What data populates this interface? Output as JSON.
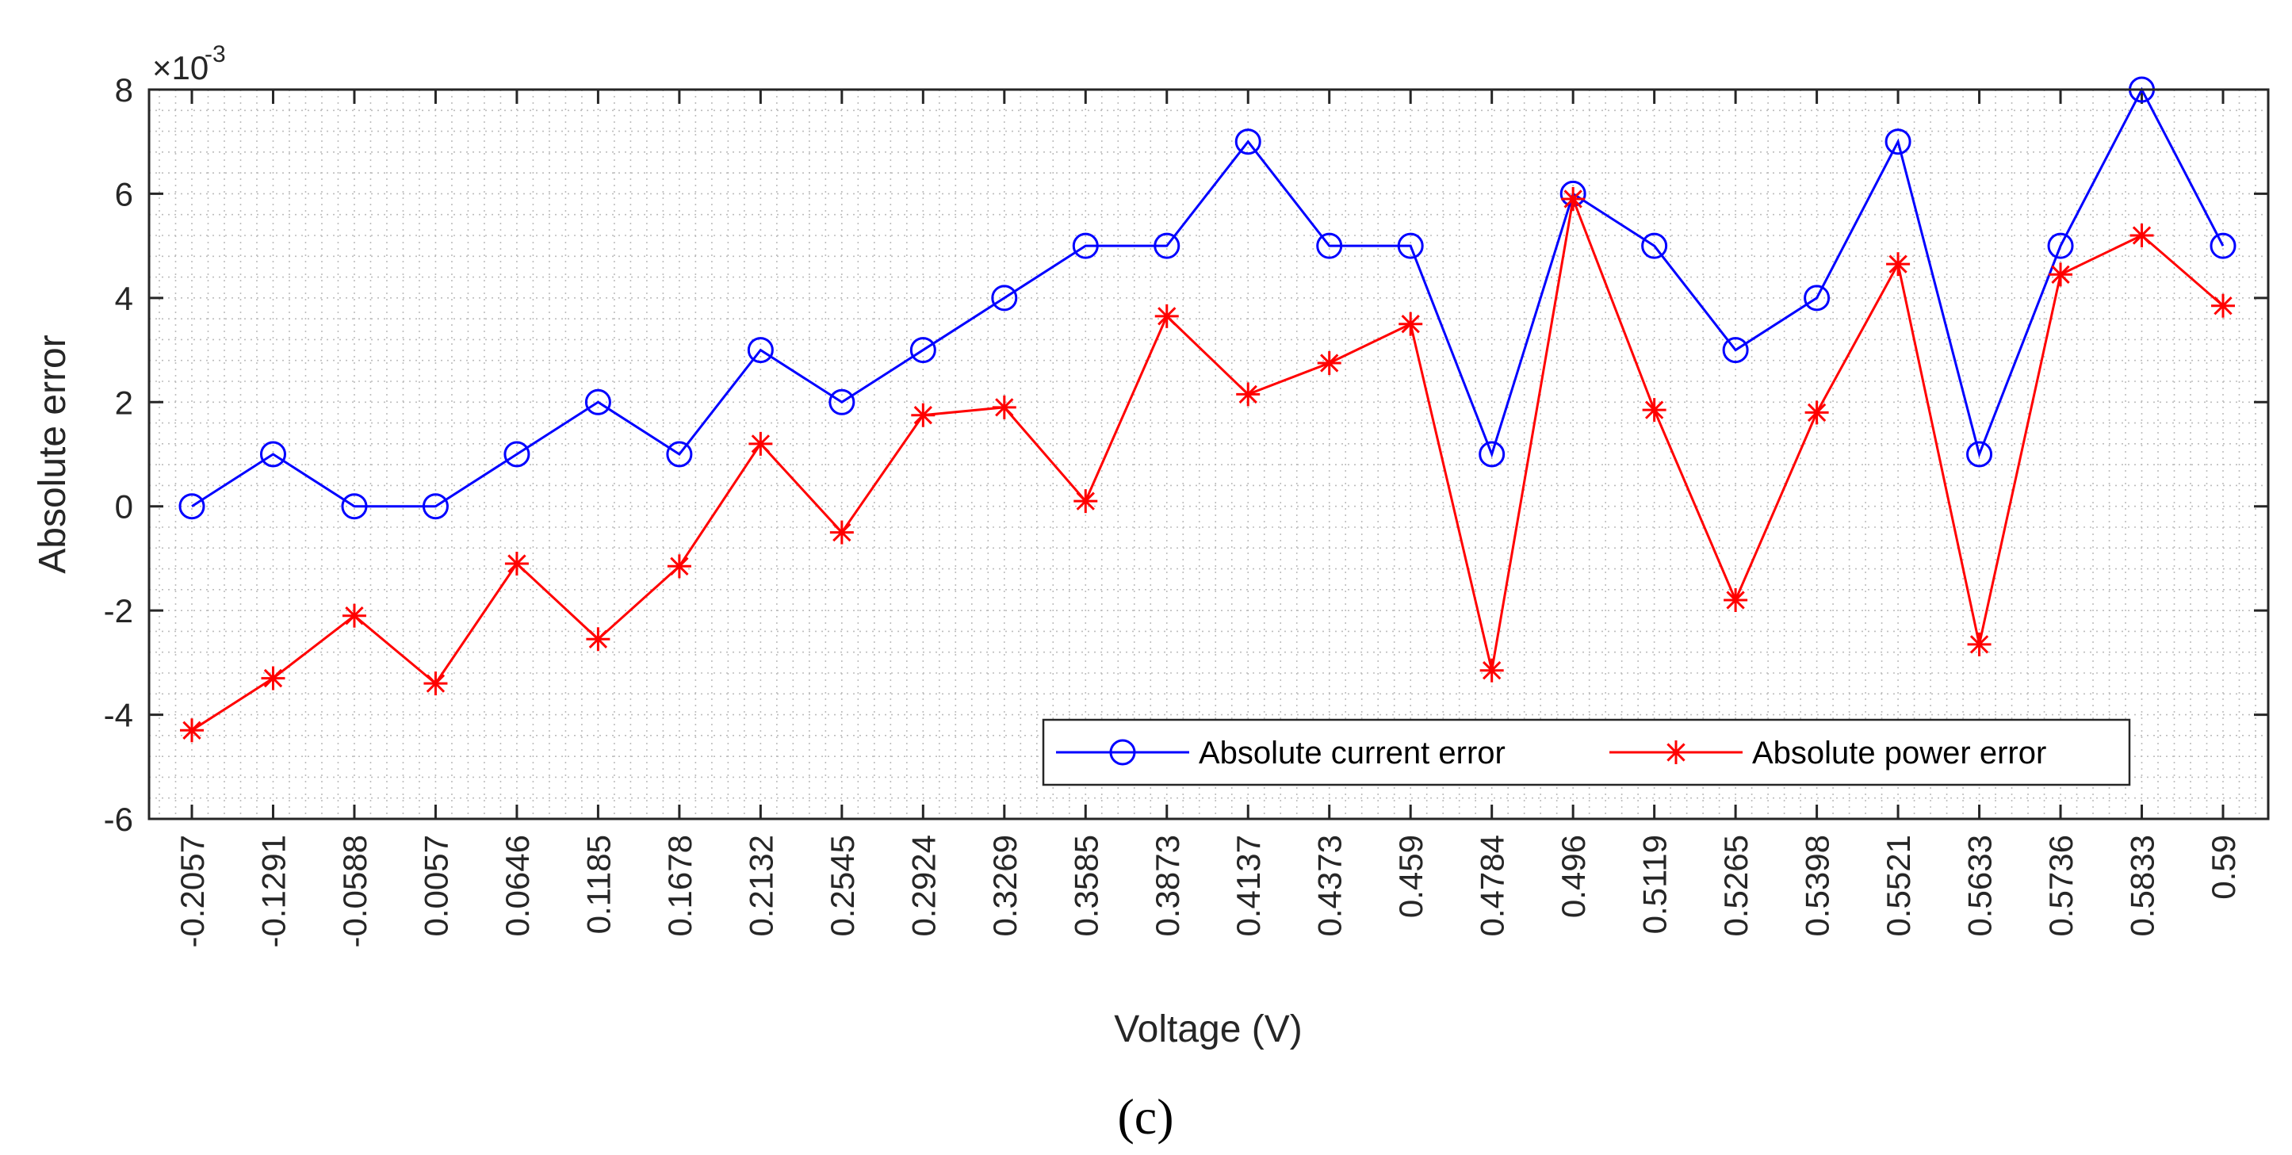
{
  "chart_data": {
    "type": "line",
    "xlabel": "Voltage (V)",
    "ylabel": "Absolute error",
    "y_exponent_label": "×10",
    "y_exponent_power": "-3",
    "ylim": [
      -6,
      8
    ],
    "yticks": [
      "-6",
      "-4",
      "-2",
      "0",
      "2",
      "4",
      "6",
      "8"
    ],
    "grid": "dotted minor grid",
    "legend_position": "bottom-right",
    "categories": [
      "-0.2057",
      "-0.1291",
      "-0.0588",
      "0.0057",
      "0.0646",
      "0.1185",
      "0.1678",
      "0.2132",
      "0.2545",
      "0.2924",
      "0.3269",
      "0.3585",
      "0.3873",
      "0.4137",
      "0.4373",
      "0.459",
      "0.4784",
      "0.496",
      "0.5119",
      "0.5265",
      "0.5398",
      "0.5521",
      "0.5633",
      "0.5736",
      "0.5833",
      "0.59"
    ],
    "series": [
      {
        "name": "Absolute current error",
        "color": "#0000ff",
        "marker": "circle",
        "values": [
          0,
          1,
          0,
          0,
          1,
          2,
          1,
          3,
          2,
          3,
          4,
          5,
          5,
          7,
          5,
          5,
          1,
          6,
          5,
          3,
          4,
          7,
          1,
          5,
          8,
          5
        ]
      },
      {
        "name": "Absolute power error",
        "color": "#ff0000",
        "marker": "asterisk",
        "values": [
          -4.3,
          -3.3,
          -2.1,
          -3.4,
          -1.1,
          -2.55,
          -1.15,
          1.2,
          -0.5,
          1.75,
          1.9,
          0.1,
          3.65,
          2.15,
          2.75,
          3.5,
          -3.15,
          5.9,
          1.85,
          -1.8,
          1.8,
          4.65,
          -2.65,
          4.45,
          5.2,
          3.85
        ]
      }
    ]
  },
  "caption": "(c)"
}
